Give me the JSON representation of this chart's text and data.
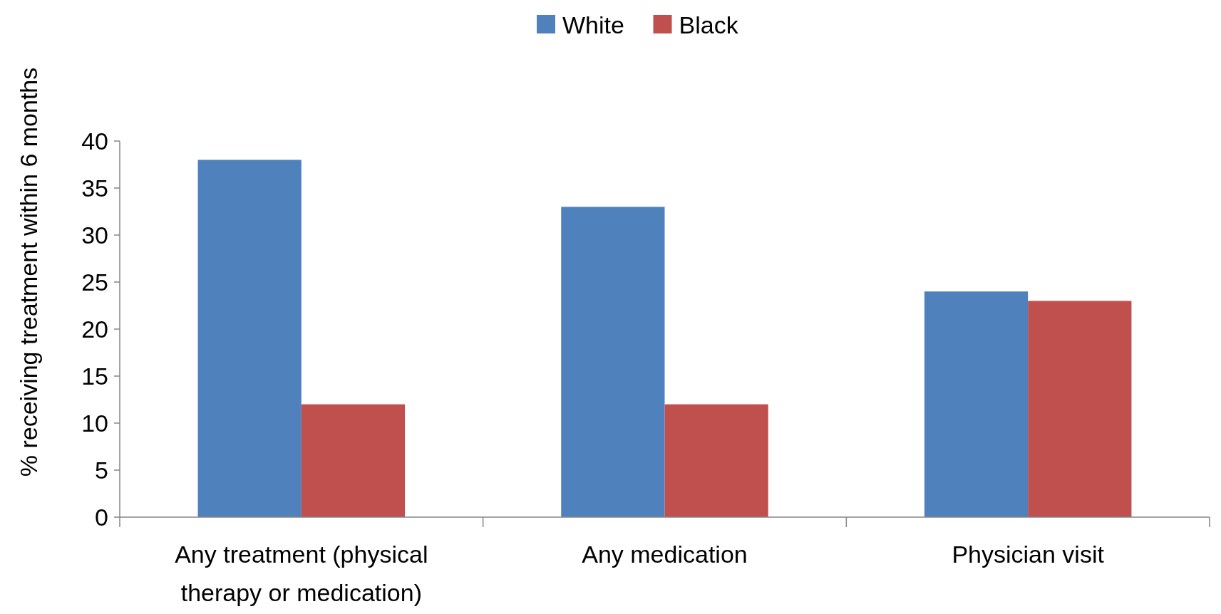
{
  "chart_data": {
    "type": "bar",
    "ylabel": "% receiving treatment within 6 months",
    "categories": [
      "Any treatment (physical therapy or medication)",
      "Any medication",
      "Physician visit"
    ],
    "series": [
      {
        "name": "White",
        "color": "#4f81bd",
        "values": [
          38,
          33,
          24
        ]
      },
      {
        "name": "Black",
        "color": "#c0504d",
        "values": [
          12,
          12,
          23
        ]
      }
    ],
    "ylim": [
      0,
      40
    ],
    "yticks": [
      0,
      5,
      10,
      15,
      20,
      25,
      30,
      35,
      40
    ],
    "grid": false,
    "legend": "top"
  }
}
